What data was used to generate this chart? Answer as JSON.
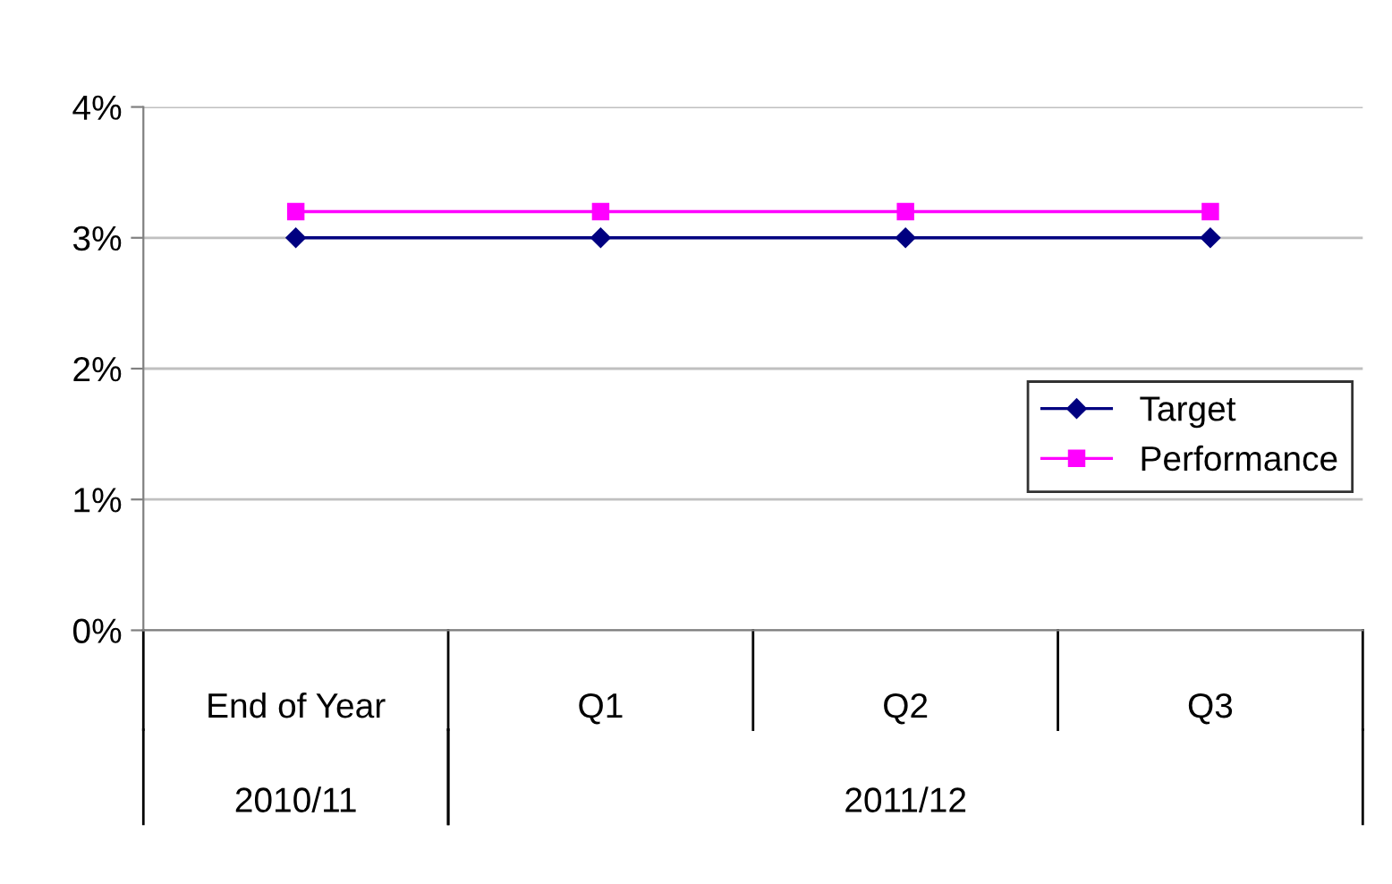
{
  "chart_data": {
    "type": "line",
    "categories": [
      "End of Year",
      "Q1",
      "Q2",
      "Q3"
    ],
    "series": [
      {
        "name": "Target",
        "color": "#000080",
        "values": [
          3,
          3,
          3,
          3
        ],
        "marker": "diamond"
      },
      {
        "name": "Performance",
        "color": "#ff00ff",
        "values": [
          3.2,
          3.2,
          3.2,
          3.2
        ],
        "marker": "square"
      }
    ],
    "ylim": [
      0,
      4
    ],
    "yticks": [
      {
        "value": 0,
        "label": "0%"
      },
      {
        "value": 1,
        "label": "1%"
      },
      {
        "value": 2,
        "label": "2%"
      },
      {
        "value": 3,
        "label": "3%"
      },
      {
        "value": 4,
        "label": "4%"
      }
    ],
    "grid": "y",
    "legend": "right",
    "line_style": "solid",
    "annotations": [
      "2010/11",
      "2011/12"
    ]
  }
}
